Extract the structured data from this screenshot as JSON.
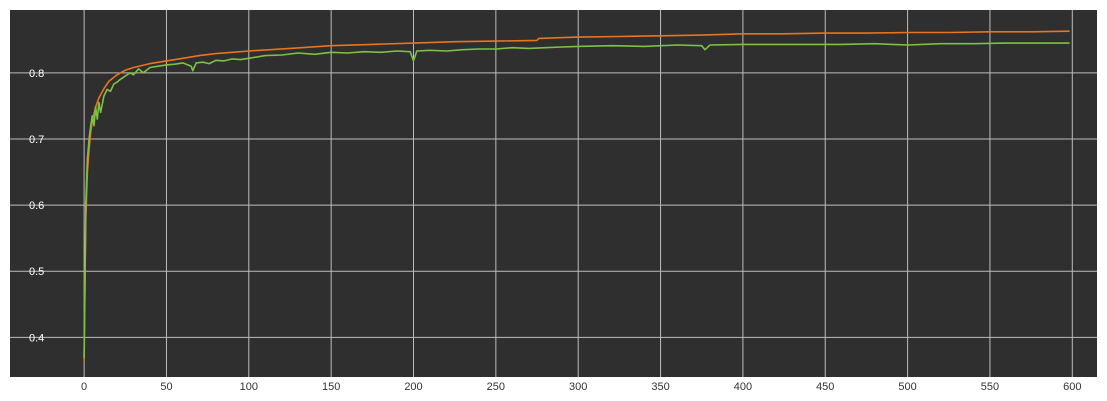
{
  "chart_data": {
    "type": "line",
    "title": "",
    "xlabel": "",
    "ylabel": "",
    "xlim": [
      -45,
      615
    ],
    "ylim": [
      0.34,
      0.895
    ],
    "x_ticks": [
      0,
      50,
      100,
      150,
      200,
      250,
      300,
      350,
      400,
      450,
      500,
      550,
      600
    ],
    "y_ticks": [
      0.4,
      0.5,
      0.6,
      0.7,
      0.8
    ],
    "x_tick_labels": [
      "0",
      "50",
      "100",
      "150",
      "200",
      "250",
      "300",
      "350",
      "400",
      "450",
      "500",
      "550",
      "600"
    ],
    "y_tick_labels": [
      "0.4",
      "0.5",
      "0.6",
      "0.7",
      "0.8"
    ],
    "grid": true,
    "background": "#2f2f2f",
    "grid_color": "#bdbdbd",
    "series": [
      {
        "color": "#e8741e",
        "x": [
          0,
          1,
          2,
          3,
          4,
          5,
          7,
          9,
          12,
          15,
          20,
          25,
          30,
          40,
          50,
          60,
          70,
          80,
          90,
          100,
          125,
          150,
          175,
          200,
          225,
          250,
          275,
          276,
          300,
          325,
          350,
          375,
          400,
          425,
          450,
          475,
          500,
          525,
          550,
          575,
          598
        ],
        "y": [
          0.365,
          0.58,
          0.65,
          0.685,
          0.71,
          0.727,
          0.748,
          0.762,
          0.776,
          0.787,
          0.797,
          0.804,
          0.808,
          0.814,
          0.818,
          0.822,
          0.826,
          0.829,
          0.831,
          0.833,
          0.837,
          0.841,
          0.843,
          0.845,
          0.847,
          0.848,
          0.849,
          0.852,
          0.854,
          0.855,
          0.856,
          0.857,
          0.859,
          0.859,
          0.86,
          0.86,
          0.861,
          0.861,
          0.862,
          0.862,
          0.863
        ]
      },
      {
        "color": "#7cc242",
        "x": [
          0,
          1,
          2,
          3,
          4,
          5,
          6,
          7,
          8,
          9,
          10,
          12,
          14,
          16,
          18,
          20,
          22,
          25,
          28,
          30,
          33,
          36,
          40,
          45,
          50,
          55,
          60,
          65,
          66,
          68,
          72,
          76,
          80,
          85,
          90,
          95,
          100,
          110,
          120,
          130,
          140,
          150,
          160,
          170,
          180,
          190,
          198,
          200,
          202,
          210,
          220,
          230,
          240,
          250,
          260,
          270,
          280,
          290,
          300,
          320,
          340,
          360,
          375,
          377,
          380,
          400,
          420,
          440,
          460,
          480,
          500,
          520,
          540,
          560,
          580,
          598
        ],
        "y": [
          0.37,
          0.6,
          0.67,
          0.7,
          0.72,
          0.735,
          0.72,
          0.748,
          0.73,
          0.755,
          0.74,
          0.765,
          0.775,
          0.772,
          0.783,
          0.786,
          0.79,
          0.795,
          0.8,
          0.797,
          0.806,
          0.8,
          0.808,
          0.81,
          0.812,
          0.813,
          0.815,
          0.81,
          0.803,
          0.815,
          0.816,
          0.814,
          0.819,
          0.818,
          0.821,
          0.82,
          0.822,
          0.826,
          0.827,
          0.83,
          0.828,
          0.831,
          0.83,
          0.832,
          0.831,
          0.833,
          0.832,
          0.818,
          0.833,
          0.834,
          0.833,
          0.835,
          0.836,
          0.836,
          0.838,
          0.837,
          0.838,
          0.839,
          0.84,
          0.841,
          0.84,
          0.842,
          0.841,
          0.835,
          0.842,
          0.843,
          0.843,
          0.843,
          0.843,
          0.844,
          0.842,
          0.844,
          0.844,
          0.845,
          0.845,
          0.845
        ]
      }
    ]
  }
}
